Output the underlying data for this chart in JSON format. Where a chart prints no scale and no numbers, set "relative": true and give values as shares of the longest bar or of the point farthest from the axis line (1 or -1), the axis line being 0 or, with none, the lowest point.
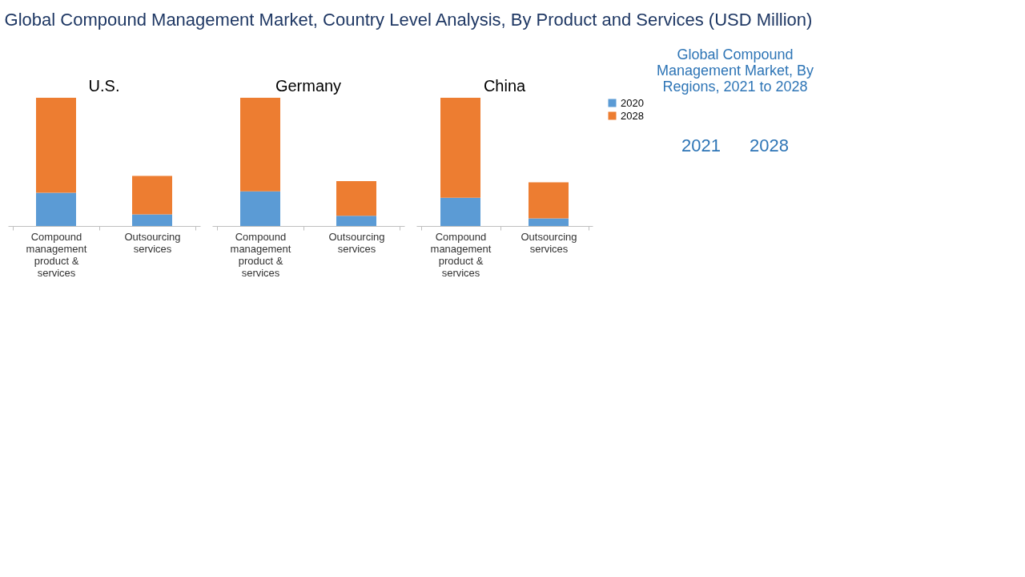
{
  "chart_data": [
    {
      "type": "bar",
      "title": "U.S.",
      "annotations": [
        "Global Compound Management Market, Country Level Analysis, By Product and Services (USD Million)"
      ],
      "categories": [
        "Compound management product & services",
        "Outsourcing services"
      ],
      "stacked": true,
      "relative": true,
      "grid": false,
      "legend": false,
      "series": [
        {
          "color": "#5b9bd5",
          "values": [
            0.26,
            0.09
          ]
        },
        {
          "color": "#ed7d31",
          "values": [
            0.74,
            0.3
          ]
        }
      ]
    },
    {
      "type": "bar",
      "title": "Germany",
      "categories": [
        "Compound management product & services",
        "Outsourcing services"
      ],
      "stacked": true,
      "relative": true,
      "grid": false,
      "legend": false,
      "series": [
        {
          "color": "#5b9bd5",
          "values": [
            0.27,
            0.08
          ]
        },
        {
          "color": "#ed7d31",
          "values": [
            0.73,
            0.27
          ]
        }
      ]
    },
    {
      "type": "bar",
      "title": "China",
      "categories": [
        "Compound management product & services",
        "Outsourcing services"
      ],
      "stacked": true,
      "relative": true,
      "grid": false,
      "legend": "right",
      "series": [
        {
          "name": "2020",
          "color": "#5b9bd5",
          "values": [
            0.22,
            0.06
          ]
        },
        {
          "name": "2028",
          "color": "#ed7d31",
          "values": [
            0.78,
            0.28
          ]
        }
      ]
    },
    {
      "type": "other",
      "title": "Global Compound Management Market, By Regions, 2021 to 2028",
      "annotations": [
        "2021",
        "2028"
      ]
    }
  ]
}
